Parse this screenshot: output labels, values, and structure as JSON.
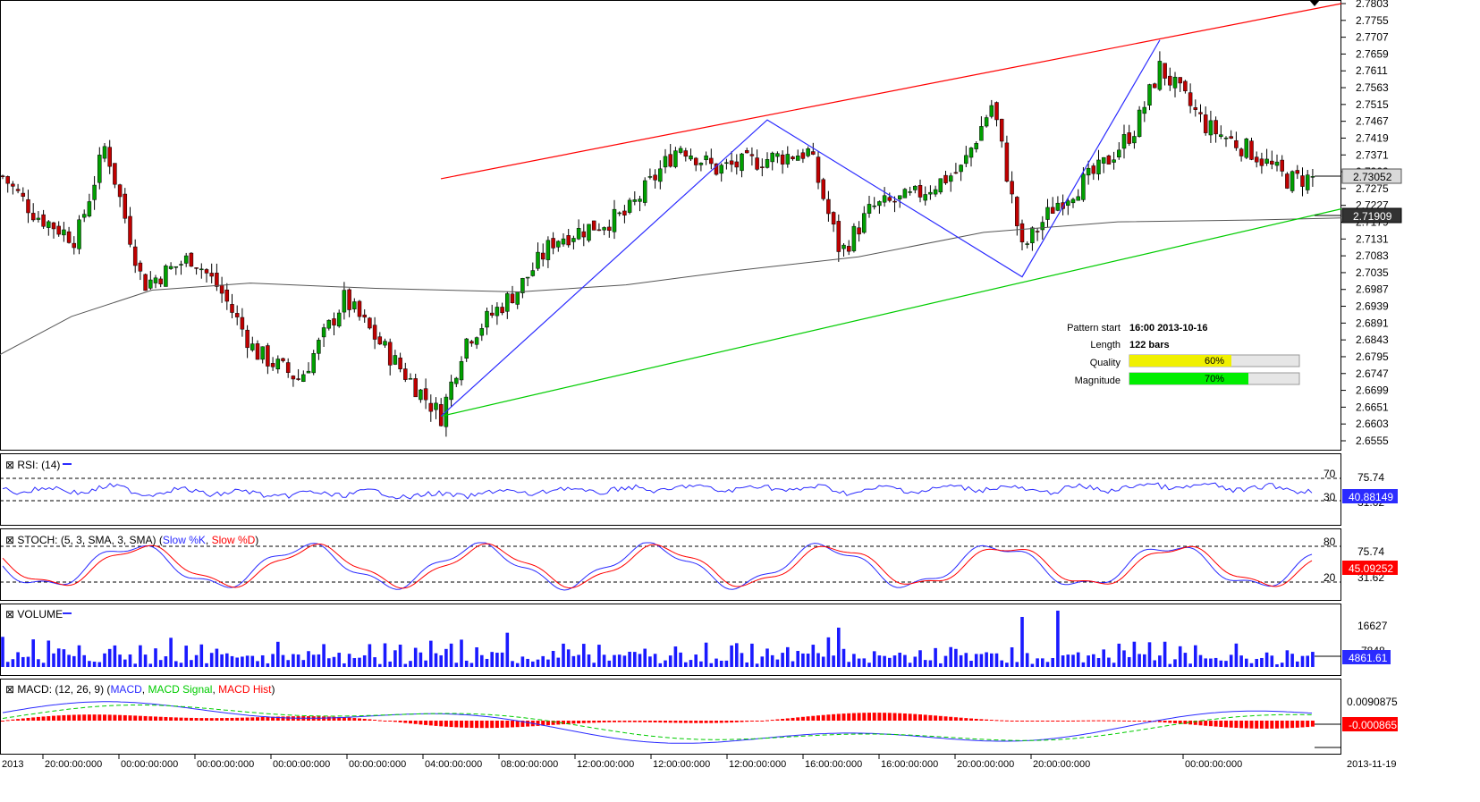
{
  "chart_data": {
    "type": "candlestick",
    "instrument_note": "",
    "price_axis": {
      "ticks": [
        "2.7803",
        "2.7755",
        "2.7707",
        "2.7659",
        "2.7611",
        "2.7563",
        "2.7515",
        "2.7467",
        "2.7419",
        "2.7371",
        "2.7323",
        "2.7275",
        "2.7227",
        "2.7179",
        "2.7131",
        "2.7083",
        "2.7035",
        "2.6987",
        "2.6939",
        "2.6891",
        "2.6843",
        "2.6795",
        "2.6747",
        "2.6699",
        "2.6651",
        "2.6603",
        "2.6555"
      ],
      "ylim": [
        2.651,
        2.7815
      ]
    },
    "current_price": "2.73052",
    "ma_value": "2.71909",
    "pattern": {
      "start_label": "Pattern start",
      "start_value": "16:00 2013-10-16",
      "length_label": "Length",
      "length_value": "122 bars",
      "quality_label": "Quality",
      "quality_value": "60%",
      "quality_fraction": 0.6,
      "magnitude_label": "Magnitude",
      "magnitude_value": "70%",
      "magnitude_fraction": 0.7
    },
    "upper_channel": {
      "from": [
        493,
        2.7303
      ],
      "to": [
        1500,
        2.7803
      ]
    },
    "lower_channel": {
      "from": [
        493,
        2.6625
      ],
      "to": [
        1500,
        2.7217
      ]
    },
    "zigzag": [
      [
        493,
        2.6625
      ],
      [
        858,
        2.7471
      ],
      [
        1143,
        2.7023
      ],
      [
        1297,
        2.7699
      ]
    ],
    "rsi": {
      "title": "RSI: (14)",
      "levels": [
        "70",
        "30"
      ],
      "axis": [
        "75.74",
        "31.62"
      ],
      "current": "40.88149"
    },
    "stoch": {
      "title": "STOCH: (5, 3, SMA, 3, SMA)",
      "k_label": "Slow %K",
      "d_label": "Slow %D",
      "levels": [
        "80",
        "20"
      ],
      "axis": [
        "75.74",
        "31.62"
      ],
      "current": "45.09252"
    },
    "volume": {
      "title": "VOLUME",
      "axis": [
        "16627",
        "7848"
      ],
      "current": "4861.61"
    },
    "macd": {
      "title": "MACD: (12, 26, 9)",
      "macd_label": "MACD",
      "signal_label": "MACD Signal",
      "hist_label": "MACD Hist",
      "axis": [
        "0.0090875"
      ],
      "current": "-0.000865"
    },
    "time_axis": [
      "2013",
      "20:00:00:000",
      "00:00:00:000",
      "00:00:00:000",
      "00:00:00:000",
      "00:00:00:000",
      "04:00:00:000",
      "08:00:00:000",
      "12:00:00:000",
      "12:00:00:000",
      "12:00:00:000",
      "16:00:00:000",
      "16:00:00:000",
      "20:00:00:000",
      "20:00:00:000",
      "00:00:00:000",
      "2013-11-19"
    ],
    "colors": {
      "up": "#00a000",
      "down": "#c00000",
      "upper_line": "#ff0000",
      "lower_line": "#00cc00",
      "zigzag": "#2b2bff",
      "ma": "#555555",
      "quality_bar": "#f0f000",
      "magnitude_bar": "#00ee00"
    }
  }
}
